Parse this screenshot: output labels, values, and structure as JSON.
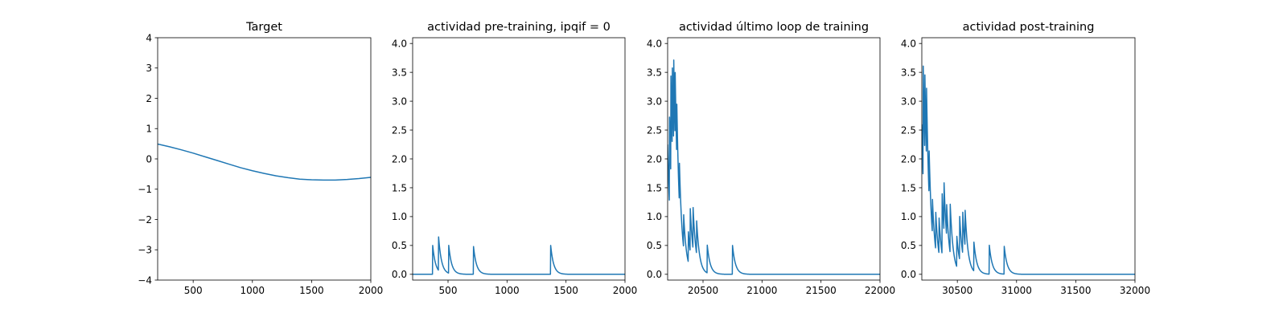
{
  "figure": {
    "background": "#ffffff",
    "line_color": "#1f77b4"
  },
  "chart_data": [
    {
      "type": "line",
      "title": "Target",
      "xlim": [
        200,
        2000
      ],
      "ylim": [
        -4,
        4
      ],
      "xticks": [
        500,
        1000,
        1500,
        2000
      ],
      "yticks": [
        -4,
        -3,
        -2,
        -1,
        0,
        1,
        2,
        3,
        4
      ],
      "ytick_labels": [
        "−4",
        "−3",
        "−2",
        "−1",
        "0",
        "1",
        "2",
        "3",
        "4"
      ],
      "grid": false,
      "series": [
        {
          "x": [
            200,
            300,
            400,
            500,
            600,
            700,
            800,
            900,
            1000,
            1100,
            1200,
            1300,
            1400,
            1500,
            1600,
            1700,
            1800,
            1900,
            2000
          ],
          "y": [
            0.49,
            0.4,
            0.3,
            0.19,
            0.07,
            -0.05,
            -0.17,
            -0.29,
            -0.39,
            -0.48,
            -0.56,
            -0.62,
            -0.67,
            -0.69,
            -0.7,
            -0.7,
            -0.68,
            -0.65,
            -0.61
          ]
        }
      ]
    },
    {
      "type": "line",
      "title": "actividad pre-training, ipqif = 0",
      "xlim": [
        200,
        2000
      ],
      "ylim": [
        -0.1,
        4.1
      ],
      "xticks": [
        500,
        1000,
        1500,
        2000
      ],
      "yticks": [
        0.0,
        0.5,
        1.0,
        1.5,
        2.0,
        2.5,
        3.0,
        3.5,
        4.0
      ],
      "ytick_labels": [
        "0.0",
        "0.5",
        "1.0",
        "1.5",
        "2.0",
        "2.5",
        "3.0",
        "3.5",
        "4.0"
      ],
      "grid": false,
      "series": [
        {
          "baseline": 0,
          "tau": 25,
          "spikes": [
            {
              "t": 370,
              "h": 0.5
            },
            {
              "t": 420,
              "h": 0.58
            },
            {
              "t": 505,
              "h": 0.5
            },
            {
              "t": 715,
              "h": 0.5
            },
            {
              "t": 1370,
              "h": 0.5
            }
          ]
        }
      ]
    },
    {
      "type": "line",
      "title": "actividad último loop de training",
      "xlim": [
        20200,
        22000
      ],
      "ylim": [
        -0.1,
        4.1
      ],
      "xticks": [
        20500,
        21000,
        21500,
        22000
      ],
      "yticks": [
        0.0,
        0.5,
        1.0,
        1.5,
        2.0,
        2.5,
        3.0,
        3.5,
        4.0
      ],
      "ytick_labels": [
        "0.0",
        "0.5",
        "1.0",
        "1.5",
        "2.0",
        "2.5",
        "3.0",
        "3.5",
        "4.0"
      ],
      "grid": false,
      "series": [
        {
          "baseline": 0,
          "tau": 25,
          "spikes": [
            {
              "t": 20200,
              "h": 2.25
            },
            {
              "t": 20215,
              "h": 1.6
            },
            {
              "t": 20228,
              "h": 1.75
            },
            {
              "t": 20240,
              "h": 1.45
            },
            {
              "t": 20252,
              "h": 1.5
            },
            {
              "t": 20264,
              "h": 1.2
            },
            {
              "t": 20278,
              "h": 0.95
            },
            {
              "t": 20300,
              "h": 0.7
            },
            {
              "t": 20335,
              "h": 0.6
            },
            {
              "t": 20375,
              "h": 0.55
            },
            {
              "t": 20392,
              "h": 0.75
            },
            {
              "t": 20415,
              "h": 0.75
            },
            {
              "t": 20445,
              "h": 0.6
            },
            {
              "t": 20535,
              "h": 0.5
            },
            {
              "t": 20750,
              "h": 0.5
            }
          ]
        }
      ]
    },
    {
      "type": "line",
      "title": "actividad post-training",
      "xlim": [
        30200,
        32000
      ],
      "ylim": [
        -0.1,
        4.1
      ],
      "xticks": [
        30500,
        31000,
        31500,
        32000
      ],
      "yticks": [
        0.0,
        0.5,
        1.0,
        1.5,
        2.0,
        2.5,
        3.0,
        3.5,
        4.0
      ],
      "ytick_labels": [
        "0.0",
        "0.5",
        "1.0",
        "1.5",
        "2.0",
        "2.5",
        "3.0",
        "3.5",
        "4.0"
      ],
      "grid": false,
      "series": [
        {
          "baseline": 0,
          "tau": 25,
          "spikes": [
            {
              "t": 30200,
              "h": 2.6
            },
            {
              "t": 30212,
              "h": 2.0
            },
            {
              "t": 30225,
              "h": 1.45
            },
            {
              "t": 30240,
              "h": 1.25
            },
            {
              "t": 30262,
              "h": 0.8
            },
            {
              "t": 30290,
              "h": 0.6
            },
            {
              "t": 30318,
              "h": 0.65
            },
            {
              "t": 30345,
              "h": 0.65
            },
            {
              "t": 30372,
              "h": 1.05
            },
            {
              "t": 30388,
              "h": 0.85
            },
            {
              "t": 30410,
              "h": 0.55
            },
            {
              "t": 30440,
              "h": 0.85
            },
            {
              "t": 30495,
              "h": 0.55
            },
            {
              "t": 30520,
              "h": 0.75
            },
            {
              "t": 30545,
              "h": 0.75
            },
            {
              "t": 30565,
              "h": 0.65
            },
            {
              "t": 30640,
              "h": 0.5
            },
            {
              "t": 30770,
              "h": 0.5
            },
            {
              "t": 30895,
              "h": 0.5
            }
          ]
        }
      ]
    }
  ]
}
